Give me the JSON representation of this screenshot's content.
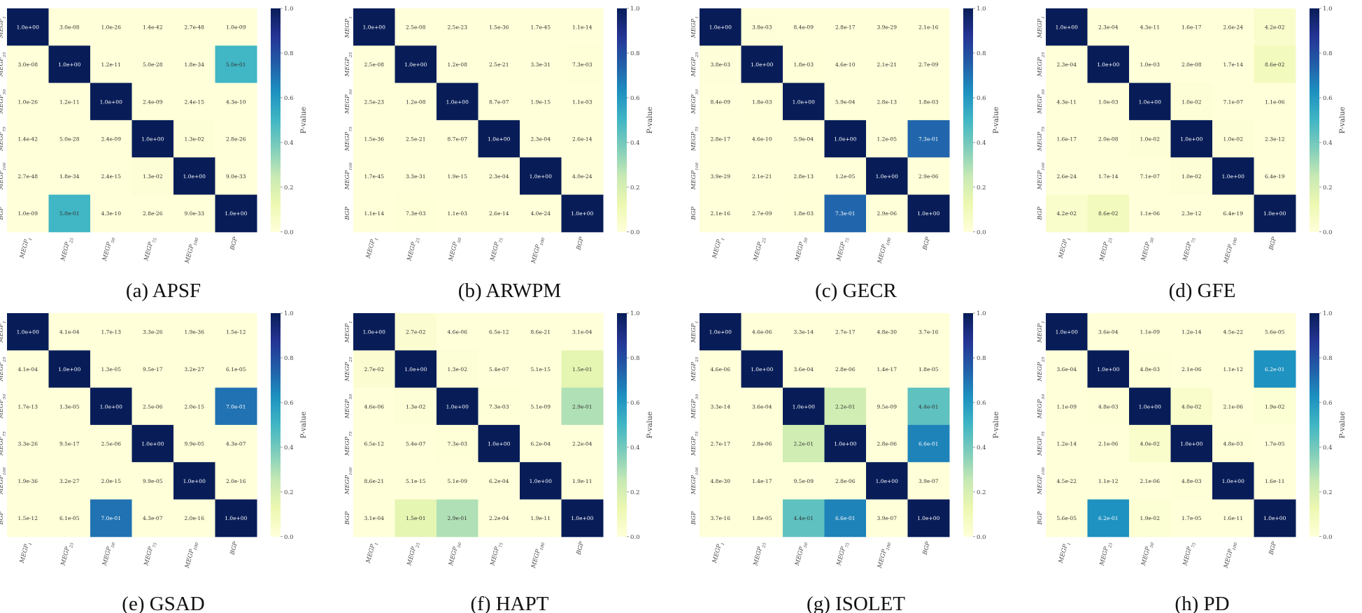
{
  "chart_data": [
    {
      "type": "heatmap",
      "caption": "(a) APSF",
      "labels": [
        "MEGP1",
        "MEGP25",
        "MEGP50",
        "MEGP75",
        "MEGP100",
        "BGP"
      ],
      "values": [
        [
          "1.0e+00",
          "3.0e-08",
          "1.0e-26",
          "1.4e-42",
          "2.7e-48",
          "1.0e-09"
        ],
        [
          "3.0e-08",
          "1.0e+00",
          "1.2e-11",
          "5.0e-28",
          "1.8e-34",
          "5.0e-01"
        ],
        [
          "1.0e-26",
          "1.2e-11",
          "1.0e+00",
          "2.4e-09",
          "2.4e-15",
          "4.3e-10"
        ],
        [
          "1.4e-42",
          "5.0e-28",
          "2.4e-09",
          "1.0e+00",
          "1.3e-02",
          "2.8e-26"
        ],
        [
          "2.7e-48",
          "1.8e-34",
          "2.4e-15",
          "1.3e-02",
          "1.0e+00",
          "9.0e-33"
        ],
        [
          "1.0e-09",
          "5.0e-01",
          "4.3e-10",
          "2.8e-26",
          "9.0e-33",
          "1.0e+00"
        ]
      ],
      "colorbar_label": "P-value",
      "colorbar_ticks": [
        "0.0",
        "0.2",
        "0.4",
        "0.6",
        "0.8",
        "1.0"
      ]
    },
    {
      "type": "heatmap",
      "caption": "(b) ARWPM",
      "labels": [
        "MEGP1",
        "MEGP25",
        "MEGP50",
        "MEGP75",
        "MEGP100",
        "BGP"
      ],
      "values": [
        [
          "1.0e+00",
          "2.5e-08",
          "2.5e-23",
          "1.5e-36",
          "1.7e-45",
          "1.1e-14"
        ],
        [
          "2.5e-08",
          "1.0e+00",
          "1.2e-08",
          "2.5e-21",
          "3.3e-31",
          "7.3e-03"
        ],
        [
          "2.5e-23",
          "1.2e-08",
          "1.0e+00",
          "8.7e-07",
          "1.9e-15",
          "1.1e-03"
        ],
        [
          "1.5e-36",
          "2.5e-21",
          "8.7e-07",
          "1.0e+00",
          "2.3e-04",
          "2.6e-14"
        ],
        [
          "1.7e-45",
          "3.3e-31",
          "1.9e-15",
          "2.3e-04",
          "1.0e+00",
          "4.0e-24"
        ],
        [
          "1.1e-14",
          "7.3e-03",
          "1.1e-03",
          "2.6e-14",
          "4.0e-24",
          "1.0e+00"
        ]
      ],
      "colorbar_label": "P-value",
      "colorbar_ticks": [
        "0.0",
        "0.2",
        "0.4",
        "0.6",
        "0.8",
        "1.0"
      ]
    },
    {
      "type": "heatmap",
      "caption": "(c) GECR",
      "labels": [
        "MEGP1",
        "MEGP25",
        "MEGP50",
        "MEGP75",
        "MEGP100",
        "BGP"
      ],
      "values": [
        [
          "1.0e+00",
          "3.8e-03",
          "8.4e-09",
          "2.8e-17",
          "3.9e-29",
          "2.1e-16"
        ],
        [
          "3.8e-03",
          "1.0e+00",
          "1.8e-03",
          "4.6e-10",
          "2.1e-21",
          "2.7e-09"
        ],
        [
          "8.4e-09",
          "1.8e-03",
          "1.0e+00",
          "5.9e-04",
          "2.8e-13",
          "1.8e-03"
        ],
        [
          "2.8e-17",
          "4.6e-10",
          "5.9e-04",
          "1.0e+00",
          "1.2e-05",
          "7.3e-01"
        ],
        [
          "3.9e-29",
          "2.1e-21",
          "2.8e-13",
          "1.2e-05",
          "1.0e+00",
          "2.9e-06"
        ],
        [
          "2.1e-16",
          "2.7e-09",
          "1.8e-03",
          "7.3e-01",
          "2.9e-06",
          "1.0e+00"
        ]
      ],
      "colorbar_label": "P-value",
      "colorbar_ticks": [
        "0.0",
        "0.2",
        "0.4",
        "0.6",
        "0.8",
        "1.0"
      ]
    },
    {
      "type": "heatmap",
      "caption": "(d) GFE",
      "labels": [
        "MEGP1",
        "MEGP25",
        "MEGP50",
        "MEGP75",
        "MEGP100",
        "BGP"
      ],
      "values": [
        [
          "1.0e+00",
          "2.3e-04",
          "4.3e-11",
          "1.6e-17",
          "2.6e-24",
          "4.2e-02"
        ],
        [
          "2.3e-04",
          "1.0e+00",
          "1.0e-03",
          "2.0e-08",
          "1.7e-14",
          "8.6e-02"
        ],
        [
          "4.3e-11",
          "1.0e-03",
          "1.0e+00",
          "1.0e-02",
          "7.1e-07",
          "1.1e-06"
        ],
        [
          "1.6e-17",
          "2.0e-08",
          "1.0e-02",
          "1.0e+00",
          "1.0e-02",
          "2.3e-12"
        ],
        [
          "2.6e-24",
          "1.7e-14",
          "7.1e-07",
          "1.0e-02",
          "1.0e+00",
          "6.4e-19"
        ],
        [
          "4.2e-02",
          "8.6e-02",
          "1.1e-06",
          "2.3e-12",
          "6.4e-19",
          "1.0e+00"
        ]
      ],
      "colorbar_label": "P-value",
      "colorbar_ticks": [
        "0.0",
        "0.2",
        "0.4",
        "0.6",
        "0.8",
        "1.0"
      ]
    },
    {
      "type": "heatmap",
      "caption": "(e) GSAD",
      "labels": [
        "MEGP1",
        "MEGP25",
        "MEGP50",
        "MEGP75",
        "MEGP100",
        "BGP"
      ],
      "values": [
        [
          "1.0e+00",
          "4.1e-04",
          "1.7e-13",
          "3.3e-26",
          "1.9e-36",
          "1.5e-12"
        ],
        [
          "4.1e-04",
          "1.0e+00",
          "1.3e-05",
          "9.5e-17",
          "3.2e-27",
          "6.1e-05"
        ],
        [
          "1.7e-13",
          "1.3e-05",
          "1.0e+00",
          "2.5e-06",
          "2.0e-15",
          "7.0e-01"
        ],
        [
          "3.3e-26",
          "9.5e-17",
          "2.5e-06",
          "1.0e+00",
          "9.9e-05",
          "4.3e-07"
        ],
        [
          "1.9e-36",
          "3.2e-27",
          "2.0e-15",
          "9.9e-05",
          "1.0e+00",
          "2.0e-16"
        ],
        [
          "1.5e-12",
          "6.1e-05",
          "7.0e-01",
          "4.3e-07",
          "2.0e-16",
          "1.0e+00"
        ]
      ],
      "colorbar_label": "P-value",
      "colorbar_ticks": [
        "0.0",
        "0.2",
        "0.4",
        "0.6",
        "0.8",
        "1.0"
      ]
    },
    {
      "type": "heatmap",
      "caption": "(f) HAPT",
      "labels": [
        "MEGP1",
        "MEGP25",
        "MEGP50",
        "MEGP75",
        "MEGP100",
        "BGP"
      ],
      "values": [
        [
          "1.0e+00",
          "2.7e-02",
          "4.6e-06",
          "6.5e-12",
          "8.6e-21",
          "3.1e-04"
        ],
        [
          "2.7e-02",
          "1.0e+00",
          "1.3e-02",
          "5.4e-07",
          "5.1e-15",
          "1.5e-01"
        ],
        [
          "4.6e-06",
          "1.3e-02",
          "1.0e+00",
          "7.3e-03",
          "5.1e-09",
          "2.9e-01"
        ],
        [
          "6.5e-12",
          "5.4e-07",
          "7.3e-03",
          "1.0e+00",
          "6.2e-04",
          "2.2e-04"
        ],
        [
          "8.6e-21",
          "5.1e-15",
          "5.1e-09",
          "6.2e-04",
          "1.0e+00",
          "1.9e-11"
        ],
        [
          "3.1e-04",
          "1.5e-01",
          "2.9e-01",
          "2.2e-04",
          "1.9e-11",
          "1.0e+00"
        ]
      ],
      "colorbar_label": "P-value",
      "colorbar_ticks": [
        "0.0",
        "0.2",
        "0.4",
        "0.6",
        "0.8",
        "1.0"
      ]
    },
    {
      "type": "heatmap",
      "caption": "(g) ISOLET",
      "labels": [
        "MEGP1",
        "MEGP25",
        "MEGP50",
        "MEGP75",
        "MEGP100",
        "BGP"
      ],
      "values": [
        [
          "1.0e+00",
          "4.6e-06",
          "3.3e-14",
          "2.7e-17",
          "4.8e-30",
          "3.7e-16"
        ],
        [
          "4.6e-06",
          "1.0e+00",
          "3.6e-04",
          "2.8e-06",
          "1.4e-17",
          "1.8e-05"
        ],
        [
          "3.3e-14",
          "3.6e-04",
          "1.0e+00",
          "2.2e-01",
          "9.5e-09",
          "4.4e-01"
        ],
        [
          "2.7e-17",
          "2.8e-06",
          "2.2e-01",
          "1.0e+00",
          "2.8e-06",
          "6.6e-01"
        ],
        [
          "4.8e-30",
          "1.4e-17",
          "9.5e-09",
          "2.8e-06",
          "1.0e+00",
          "3.9e-07"
        ],
        [
          "3.7e-16",
          "1.8e-05",
          "4.4e-01",
          "6.6e-01",
          "3.9e-07",
          "1.0e+00"
        ]
      ],
      "colorbar_label": "P-value",
      "colorbar_ticks": [
        "0.0",
        "0.2",
        "0.4",
        "0.6",
        "0.8",
        "1.0"
      ]
    },
    {
      "type": "heatmap",
      "caption": "(h) PD",
      "labels": [
        "MEGP1",
        "MEGP25",
        "MEGP50",
        "MEGP75",
        "MEGP100",
        "BGP"
      ],
      "values": [
        [
          "1.0e+00",
          "3.6e-04",
          "1.1e-09",
          "1.2e-14",
          "4.5e-22",
          "5.6e-05"
        ],
        [
          "3.6e-04",
          "1.0e+00",
          "4.8e-03",
          "2.1e-06",
          "1.1e-12",
          "6.2e-01"
        ],
        [
          "1.1e-09",
          "4.8e-03",
          "1.0e+00",
          "4.0e-02",
          "2.1e-06",
          "1.9e-02"
        ],
        [
          "1.2e-14",
          "2.1e-06",
          "4.0e-02",
          "1.0e+00",
          "4.8e-03",
          "1.7e-05"
        ],
        [
          "4.5e-22",
          "1.1e-12",
          "2.1e-06",
          "4.8e-03",
          "1.0e+00",
          "1.6e-11"
        ],
        [
          "5.6e-05",
          "6.2e-01",
          "1.9e-02",
          "1.7e-05",
          "1.6e-11",
          "1.0e+00"
        ]
      ],
      "colorbar_label": "P-value",
      "colorbar_ticks": [
        "0.0",
        "0.2",
        "0.4",
        "0.6",
        "0.8",
        "1.0"
      ]
    }
  ],
  "colormap": [
    "#ffffd9",
    "#edf8b1",
    "#c7e9b4",
    "#7fcdbb",
    "#41b6c4",
    "#1d91c0",
    "#225ea8",
    "#253494",
    "#081d58"
  ]
}
